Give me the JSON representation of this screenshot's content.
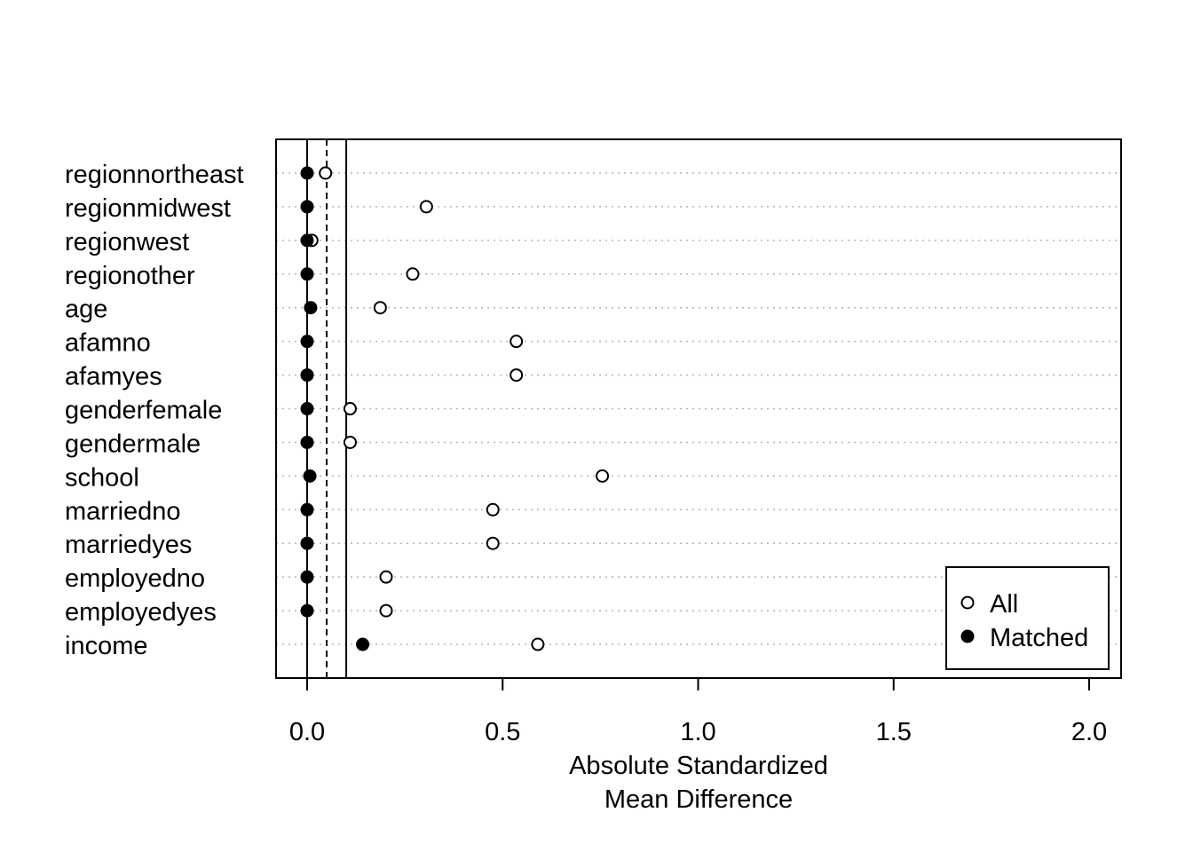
{
  "chart_data": {
    "type": "scatter",
    "title": "",
    "xlabel_lines": [
      "Absolute Standardized",
      "Mean Difference"
    ],
    "xlim": [
      0,
      2
    ],
    "x_ticks": [
      0.0,
      0.5,
      1.0,
      1.5,
      2.0
    ],
    "x_tick_labels": [
      "0.0",
      "0.5",
      "1.0",
      "1.5",
      "2.0"
    ],
    "reference_lines": [
      {
        "x": 0,
        "style": "solid"
      },
      {
        "x": 0.05,
        "style": "dashed"
      },
      {
        "x": 0.1,
        "style": "solid"
      }
    ],
    "grid": "horizontal dotted",
    "categories": [
      "regionnortheast",
      "regionmidwest",
      "regionwest",
      "regionother",
      "age",
      "afamno",
      "afamyes",
      "genderfemale",
      "gendermale",
      "school",
      "marriedno",
      "marriedyes",
      "employedno",
      "employedyes",
      "income"
    ],
    "series": [
      {
        "name": "All",
        "marker": "open-circle",
        "values": [
          0.047,
          0.305,
          0.012,
          0.27,
          0.187,
          0.535,
          0.535,
          0.11,
          0.11,
          0.755,
          0.475,
          0.475,
          0.202,
          0.202,
          0.59
        ]
      },
      {
        "name": "Matched",
        "marker": "filled-circle",
        "values": [
          0.0,
          0.0,
          0.0,
          0.0,
          0.009,
          0.0,
          0.0,
          0.0,
          0.0,
          0.007,
          0.0,
          0.0,
          0.0,
          0.0,
          0.142
        ]
      }
    ],
    "legend_position": "bottom-right"
  }
}
